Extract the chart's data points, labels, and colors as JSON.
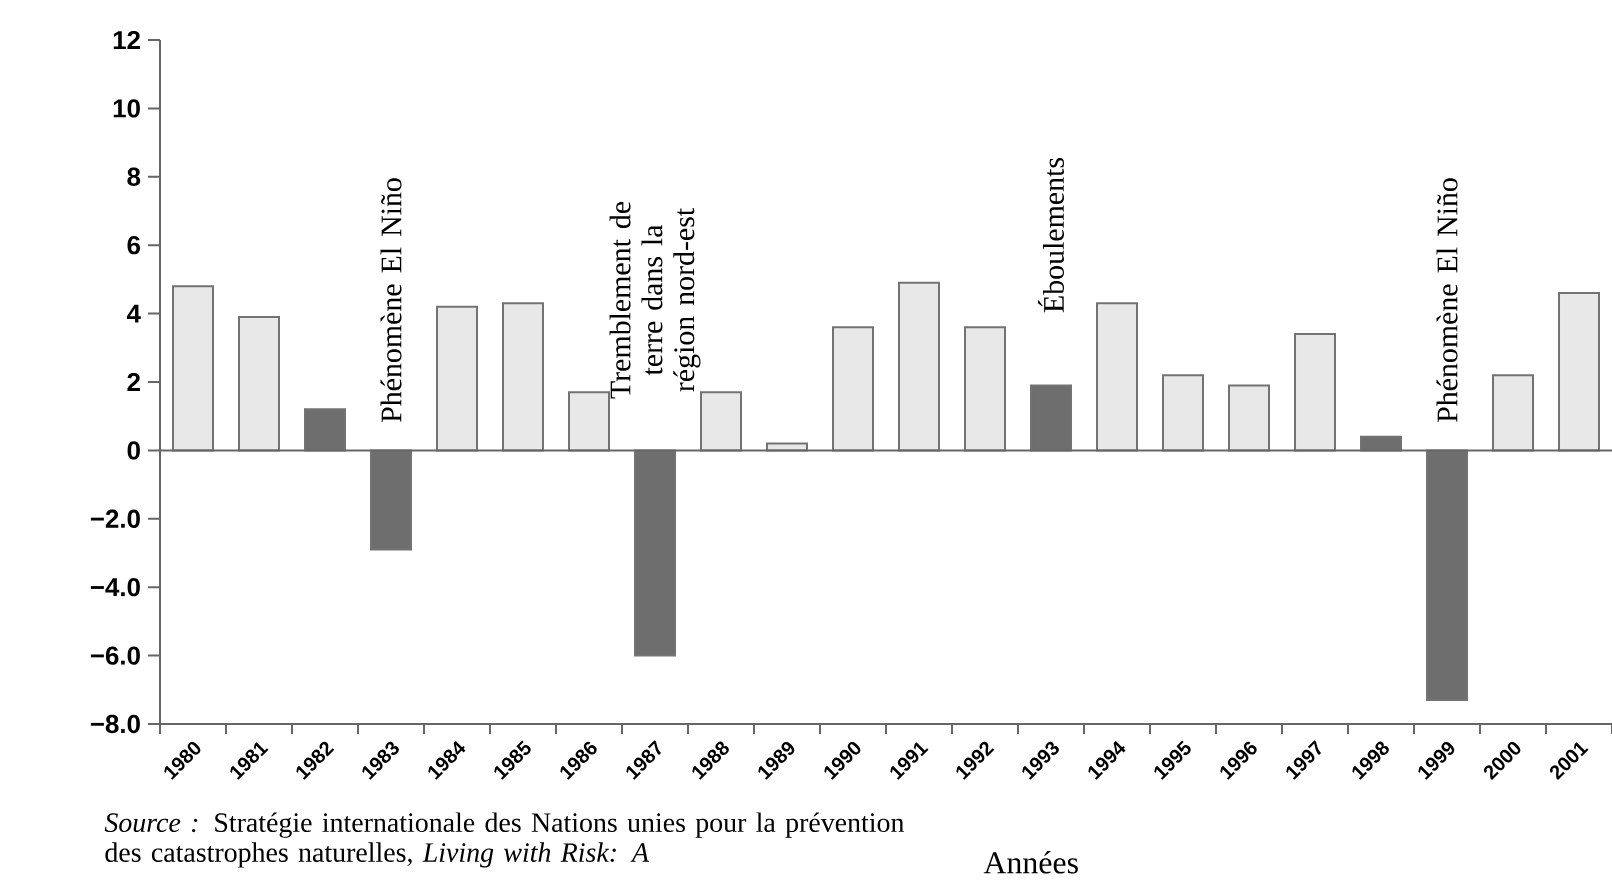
{
  "chart_data": {
    "type": "bar",
    "categories": [
      "1980",
      "1981",
      "1982",
      "1983",
      "1984",
      "1985",
      "1986",
      "1987",
      "1988",
      "1989",
      "1990",
      "1991",
      "1992",
      "1993",
      "1994",
      "1995",
      "1996",
      "1997",
      "1998",
      "1999",
      "2000",
      "2001"
    ],
    "values": [
      4.8,
      3.9,
      1.2,
      -2.9,
      4.2,
      4.3,
      1.7,
      -6.0,
      1.7,
      0.2,
      3.6,
      4.9,
      3.6,
      1.9,
      4.3,
      2.2,
      1.9,
      3.4,
      0.4,
      -7.3,
      2.2,
      4.6
    ],
    "colors": [
      "#e8e8e8",
      "#e8e8e8",
      "#6e6e6e",
      "#6e6e6e",
      "#e8e8e8",
      "#e8e8e8",
      "#e8e8e8",
      "#6e6e6e",
      "#e8e8e8",
      "#e8e8e8",
      "#e8e8e8",
      "#e8e8e8",
      "#e8e8e8",
      "#6e6e6e",
      "#e8e8e8",
      "#e8e8e8",
      "#e8e8e8",
      "#e8e8e8",
      "#6e6e6e",
      "#6e6e6e",
      "#e8e8e8",
      "#e8e8e8"
    ],
    "ylim": [
      -8,
      12
    ],
    "yticks": [
      {
        "value": -8,
        "label": "−8.0"
      },
      {
        "value": -6,
        "label": "−6.0"
      },
      {
        "value": -4,
        "label": "−4.0"
      },
      {
        "value": -2,
        "label": "−2.0"
      },
      0,
      2,
      4,
      6,
      8,
      10,
      12
    ],
    "xlabel": "Années",
    "annotations": [
      {
        "text": "Phénomène El Niño",
        "x": "1983",
        "y": 0
      },
      {
        "text": "Tremblement de terre dans la région nord-est",
        "x": "1987",
        "y": 0
      },
      {
        "text": "Éboulements",
        "x": "1993",
        "y": 1.9
      },
      {
        "text": "Phénomène El Niño",
        "x": "1999",
        "y": 0
      },
      "*Source :* Stratégie internationale des Nations unies pour la prévention des catastrophes naturelles, *Living with Risk: A*"
    ]
  }
}
